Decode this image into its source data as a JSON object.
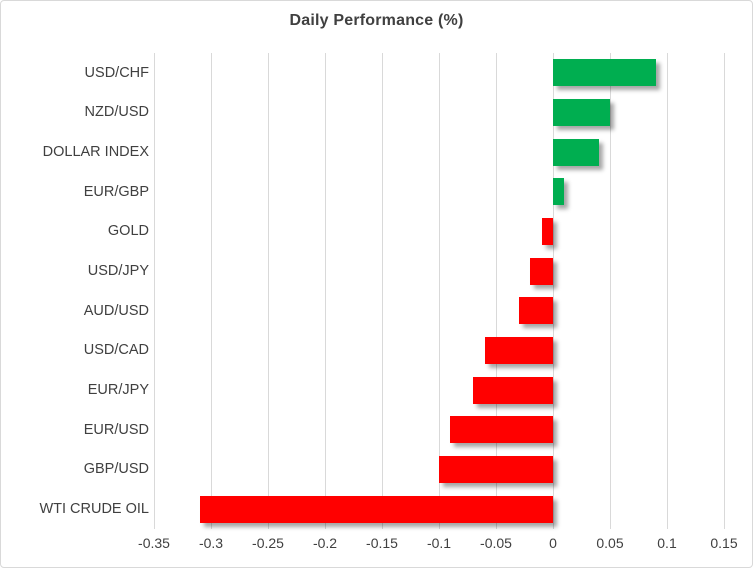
{
  "chart_data": {
    "type": "bar",
    "orientation": "horizontal",
    "title": "Daily Performance (%)",
    "categories": [
      "USD/CHF",
      "NZD/USD",
      "DOLLAR INDEX",
      "EUR/GBP",
      "GOLD",
      "USD/JPY",
      "AUD/USD",
      "USD/CAD",
      "EUR/JPY",
      "EUR/USD",
      "GBP/USD",
      "WTI CRUDE OIL"
    ],
    "values": [
      0.09,
      0.05,
      0.04,
      0.01,
      -0.01,
      -0.02,
      -0.03,
      -0.06,
      -0.07,
      -0.09,
      -0.1,
      -0.31
    ],
    "xlabel": "",
    "ylabel": "",
    "xlim": [
      -0.35,
      0.15
    ],
    "xticks": [
      -0.35,
      -0.3,
      -0.25,
      -0.2,
      -0.15,
      -0.1,
      -0.05,
      0,
      0.05,
      0.1,
      0.15
    ],
    "xtick_labels": [
      "-0.35",
      "-0.3",
      "-0.25",
      "-0.2",
      "-0.15",
      "-0.1",
      "-0.05",
      "0",
      "0.05",
      "0.1",
      "0.15"
    ],
    "grid": true,
    "legend": false,
    "colors": {
      "positive": "#00AE50",
      "negative": "#FF0000",
      "gridline": "#D9D9D9",
      "text": "#404040",
      "frame_border": "#D9D9D9",
      "background": "#FFFFFF"
    }
  }
}
